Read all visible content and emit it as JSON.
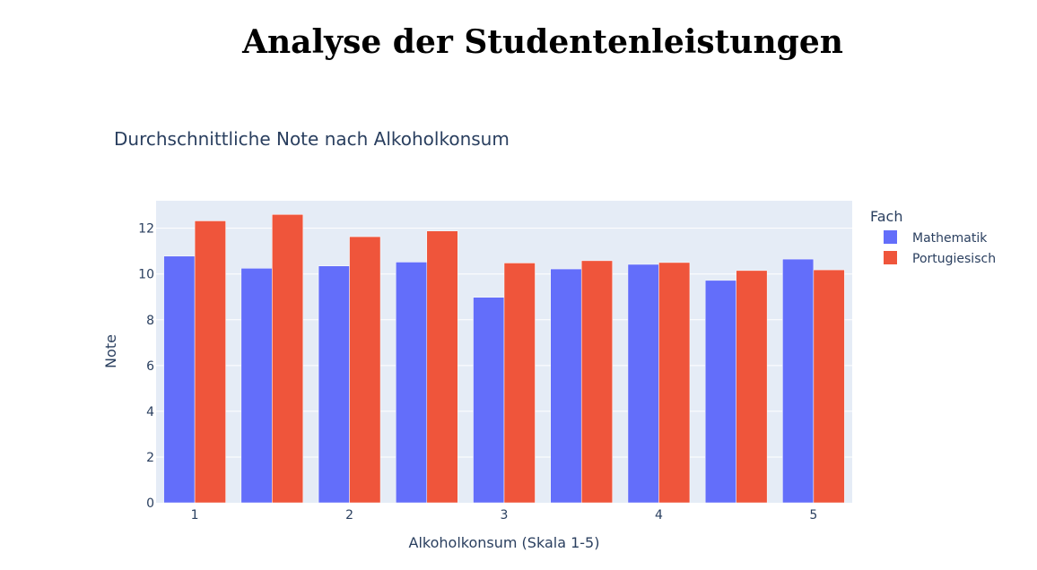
{
  "page": {
    "heading": "Analyse der Studentenleistungen"
  },
  "chart_data": {
    "type": "bar",
    "title": "Durchschnittliche Note nach Alkoholkonsum",
    "xlabel": "Alkoholkonsum (Skala 1-5)",
    "ylabel": "Note",
    "x": [
      1,
      1.5,
      2,
      2.5,
      3,
      3.5,
      4,
      4.5,
      5
    ],
    "xticks": [
      "1",
      "2",
      "3",
      "4",
      "5"
    ],
    "xlim": [
      0.75,
      5.25
    ],
    "ylim": [
      0,
      13.2
    ],
    "yticks": [
      0,
      2,
      4,
      6,
      8,
      10,
      12
    ],
    "grid": true,
    "legend": {
      "title": "Fach",
      "placement": "right"
    },
    "series": [
      {
        "name": "Mathematik",
        "color": "#636efa",
        "values": [
          10.78,
          10.25,
          10.35,
          10.52,
          8.98,
          10.22,
          10.42,
          9.72,
          10.65
        ]
      },
      {
        "name": "Portugiesisch",
        "color": "#ef553b",
        "values": [
          12.32,
          12.6,
          11.63,
          11.88,
          10.48,
          10.58,
          10.5,
          10.15,
          10.18
        ]
      }
    ]
  }
}
